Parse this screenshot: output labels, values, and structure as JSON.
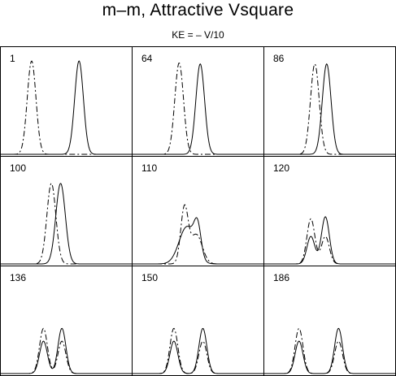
{
  "chart_data": {
    "type": "line",
    "title": "m–m,  Attractive Vsquare",
    "subtitle": "KE = – V/10",
    "grid": false,
    "legend": "none",
    "xlim": [
      0,
      1
    ],
    "ylim": [
      0,
      1
    ],
    "series_styles": {
      "solid": "solid",
      "dashed": "dash-dot"
    },
    "panels": [
      {
        "label": "1",
        "solid": [
          {
            "mu": 0.6,
            "sigma": 0.033,
            "amp": 0.95
          }
        ],
        "dashed": [
          {
            "mu": 0.24,
            "sigma": 0.033,
            "amp": 0.95
          }
        ]
      },
      {
        "label": "64",
        "solid": [
          {
            "mu": 0.52,
            "sigma": 0.033,
            "amp": 0.92
          }
        ],
        "dashed": [
          {
            "mu": 0.36,
            "sigma": 0.033,
            "amp": 0.93
          }
        ]
      },
      {
        "label": "86",
        "solid": [
          {
            "mu": 0.48,
            "sigma": 0.033,
            "amp": 0.92
          }
        ],
        "dashed": [
          {
            "mu": 0.39,
            "sigma": 0.033,
            "amp": 0.92
          }
        ]
      },
      {
        "label": "100",
        "solid": [
          {
            "mu": 0.46,
            "sigma": 0.036,
            "amp": 0.82
          }
        ],
        "dashed": [
          {
            "mu": 0.39,
            "sigma": 0.034,
            "amp": 0.82
          }
        ]
      },
      {
        "label": "110",
        "solid": [
          {
            "mu": 0.42,
            "sigma": 0.06,
            "amp": 0.38
          },
          {
            "mu": 0.5,
            "sigma": 0.026,
            "amp": 0.3
          }
        ],
        "dashed": [
          {
            "mu": 0.4,
            "sigma": 0.028,
            "amp": 0.56
          },
          {
            "mu": 0.49,
            "sigma": 0.045,
            "amp": 0.3
          }
        ]
      },
      {
        "label": "120",
        "solid": [
          {
            "mu": 0.36,
            "sigma": 0.03,
            "amp": 0.28
          },
          {
            "mu": 0.47,
            "sigma": 0.03,
            "amp": 0.48
          }
        ],
        "dashed": [
          {
            "mu": 0.36,
            "sigma": 0.03,
            "amp": 0.46
          },
          {
            "mu": 0.47,
            "sigma": 0.03,
            "amp": 0.28
          }
        ]
      },
      {
        "label": "136",
        "solid": [
          {
            "mu": 0.33,
            "sigma": 0.03,
            "amp": 0.33
          },
          {
            "mu": 0.47,
            "sigma": 0.03,
            "amp": 0.46
          }
        ],
        "dashed": [
          {
            "mu": 0.33,
            "sigma": 0.03,
            "amp": 0.46
          },
          {
            "mu": 0.47,
            "sigma": 0.03,
            "amp": 0.33
          }
        ]
      },
      {
        "label": "150",
        "solid": [
          {
            "mu": 0.32,
            "sigma": 0.03,
            "amp": 0.33
          },
          {
            "mu": 0.54,
            "sigma": 0.03,
            "amp": 0.46
          }
        ],
        "dashed": [
          {
            "mu": 0.32,
            "sigma": 0.03,
            "amp": 0.46
          },
          {
            "mu": 0.54,
            "sigma": 0.03,
            "amp": 0.33
          }
        ]
      },
      {
        "label": "186",
        "solid": [
          {
            "mu": 0.27,
            "sigma": 0.03,
            "amp": 0.33
          },
          {
            "mu": 0.57,
            "sigma": 0.03,
            "amp": 0.46
          }
        ],
        "dashed": [
          {
            "mu": 0.27,
            "sigma": 0.03,
            "amp": 0.46
          },
          {
            "mu": 0.57,
            "sigma": 0.03,
            "amp": 0.33
          }
        ]
      }
    ]
  }
}
